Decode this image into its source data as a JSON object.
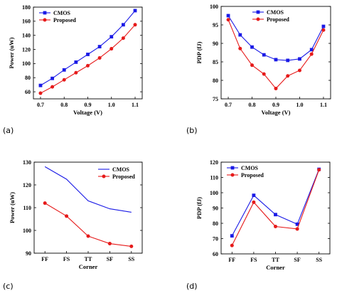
{
  "colors": {
    "cmos": "#1a1ae6",
    "proposed": "#e61a1a"
  },
  "chart_data": [
    {
      "id": "a",
      "panel_label": "(a)",
      "type": "line",
      "xlabel": "Voltage (V)",
      "ylabel": "Power (uW)",
      "xlim": [
        0.67,
        1.13
      ],
      "ylim": [
        50,
        180
      ],
      "xticks": [
        0.7,
        0.8,
        0.9,
        1.0,
        1.1
      ],
      "xticklabels": [
        "0.7",
        "0.8",
        "0.9",
        "1.0",
        "1.1"
      ],
      "yticks": [
        60,
        80,
        100,
        120,
        140,
        160,
        180
      ],
      "yticklabels": [
        "60",
        "80",
        "100",
        "120",
        "140",
        "160",
        "180"
      ],
      "legend_position": "top-left",
      "x": [
        0.7,
        0.75,
        0.8,
        0.85,
        0.9,
        0.95,
        1.0,
        1.05,
        1.1
      ],
      "series": [
        {
          "name": "CMOS",
          "marker": "square",
          "values": [
            69,
            79,
            91,
            102,
            113,
            124,
            138,
            155,
            175
          ]
        },
        {
          "name": "Proposed",
          "marker": "circle",
          "values": [
            58,
            67,
            77,
            87,
            97,
            108,
            121,
            136,
            155
          ]
        }
      ]
    },
    {
      "id": "b",
      "panel_label": "(b)",
      "type": "line",
      "xlabel": "Voltage (V)",
      "ylabel": "PDP (fJ)",
      "xlim": [
        0.67,
        1.13
      ],
      "ylim": [
        75,
        100
      ],
      "xticks": [
        0.7,
        0.8,
        0.9,
        1.0,
        1.1
      ],
      "xticklabels": [
        "0.7",
        "0.8",
        "0.9",
        "1.0",
        "1.1"
      ],
      "yticks": [
        75,
        80,
        85,
        90,
        95,
        100
      ],
      "yticklabels": [
        "75",
        "80",
        "85",
        "90",
        "95",
        "100"
      ],
      "legend_position": "top-center",
      "x": [
        0.7,
        0.75,
        0.8,
        0.85,
        0.9,
        0.95,
        1.0,
        1.05,
        1.1
      ],
      "series": [
        {
          "name": "CMOS",
          "marker": "square",
          "values": [
            97.5,
            92.3,
            89.0,
            86.9,
            85.6,
            85.4,
            85.8,
            88.3,
            94.6
          ]
        },
        {
          "name": "Proposed",
          "marker": "circle",
          "values": [
            96.4,
            88.6,
            84.1,
            81.7,
            77.8,
            81.2,
            82.7,
            87.1,
            93.6
          ]
        }
      ]
    },
    {
      "id": "c",
      "panel_label": "(c)",
      "type": "line",
      "xlabel": "Corner",
      "ylabel": "Power (uW)",
      "categories": [
        "FF",
        "FS",
        "TT",
        "SF",
        "SS"
      ],
      "ylim": [
        90,
        130
      ],
      "yticks": [
        90,
        100,
        110,
        120,
        130
      ],
      "yticklabels": [
        "90",
        "100",
        "110",
        "120",
        "130"
      ],
      "legend_position": "top-right",
      "series": [
        {
          "name": "CMOS",
          "marker": "none",
          "values": [
            128.0,
            122.5,
            113.0,
            109.5,
            108.0
          ]
        },
        {
          "name": "Proposed",
          "marker": "circle",
          "values": [
            112.0,
            106.3,
            97.5,
            94.2,
            93.0
          ]
        }
      ]
    },
    {
      "id": "d",
      "panel_label": "(d)",
      "type": "line",
      "xlabel": "Corner",
      "ylabel": "PDP (fJ)",
      "categories": [
        "FF",
        "FS",
        "TT",
        "SF",
        "SS"
      ],
      "ylim": [
        60,
        120
      ],
      "yticks": [
        60,
        70,
        80,
        90,
        100,
        110,
        120
      ],
      "yticklabels": [
        "60",
        "70",
        "80",
        "90",
        "100",
        "110",
        "120"
      ],
      "legend_position": "top-left",
      "series": [
        {
          "name": "CMOS",
          "marker": "square",
          "values": [
            71.8,
            98.3,
            85.7,
            79.4,
            115.3
          ]
        },
        {
          "name": "Proposed",
          "marker": "circle",
          "values": [
            65.5,
            93.8,
            77.9,
            76.3,
            115.0
          ]
        }
      ]
    }
  ]
}
